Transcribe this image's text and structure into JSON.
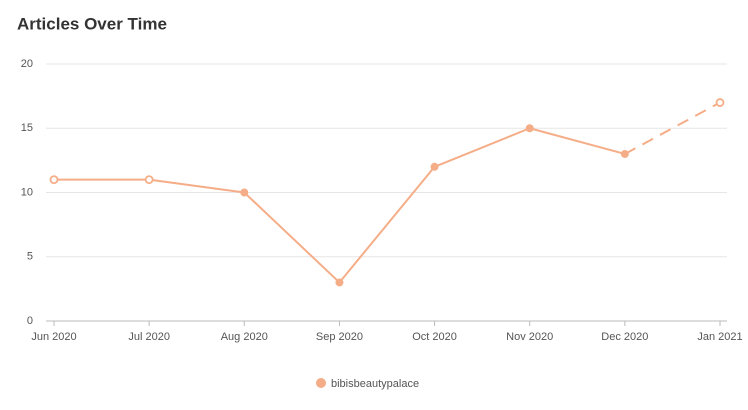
{
  "chart_data": {
    "type": "line",
    "title": "Articles Over Time",
    "categories": [
      "Jun 2020",
      "Jul 2020",
      "Aug 2020",
      "Sep 2020",
      "Oct 2020",
      "Nov 2020",
      "Dec 2020",
      "Jan 2021"
    ],
    "series": [
      {
        "name": "bibisbeautypalace",
        "color": "#f5ad88",
        "values": [
          11,
          11,
          10,
          3,
          12,
          15,
          13,
          17
        ],
        "marker_styles": [
          "open",
          "open",
          "filled",
          "filled",
          "filled",
          "filled",
          "filled",
          "open"
        ],
        "segment_styles": [
          "solid",
          "solid",
          "solid",
          "solid",
          "solid",
          "solid",
          "dashed"
        ]
      }
    ],
    "ylim": [
      0,
      20
    ],
    "yticks": [
      0,
      5,
      10,
      15,
      20
    ],
    "grid": true,
    "legend": "bottom"
  }
}
